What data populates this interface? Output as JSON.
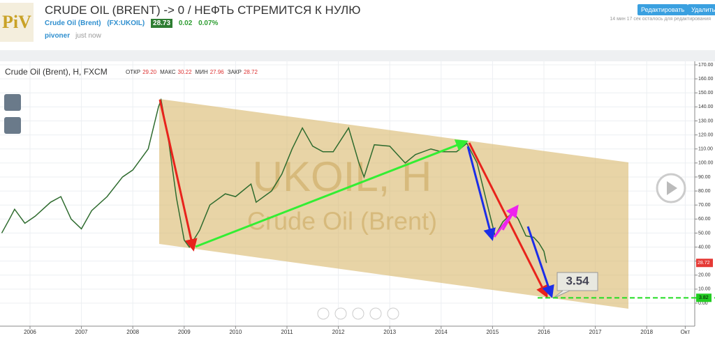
{
  "header": {
    "logo": "PiV",
    "title": "CRUDE OIL (BRENT) -> 0 / НЕФТЬ СТРЕМИТСЯ К НУЛЮ",
    "symbol_name": "Crude Oil (Brent)",
    "symbol_code": "(FX:UKOIL)",
    "price": "28.73",
    "change": "0.02",
    "change_pct": "0.07%",
    "author": "pivoner",
    "time": "just now",
    "edit_button": "Редактировать",
    "delete_button": "Удалить",
    "edit_notice": "14 мин 17 сек осталось для редактирования"
  },
  "chart_data": {
    "type": "line",
    "legend_title": "Crude Oil (Brent), H, FXCM",
    "ohlc": [
      {
        "label": "ОТКР",
        "value": "29.20"
      },
      {
        "label": "МАКС",
        "value": "30.22"
      },
      {
        "label": "МИН",
        "value": "27.96"
      },
      {
        "label": "ЗАКР",
        "value": "28.72"
      }
    ],
    "watermark": [
      "UKOIL, H",
      "Crude Oil (Brent)"
    ],
    "annotation": "3.54",
    "x": [
      2005.45,
      2005.6,
      2005.7,
      2005.9,
      2006.1,
      2006.4,
      2006.6,
      2006.8,
      2007.0,
      2007.2,
      2007.5,
      2007.8,
      2008.0,
      2008.3,
      2008.5,
      2008.55,
      2008.7,
      2008.85,
      2009.0,
      2009.1,
      2009.3,
      2009.5,
      2009.8,
      2010.0,
      2010.3,
      2010.4,
      2010.7,
      2010.9,
      2011.1,
      2011.3,
      2011.5,
      2011.7,
      2011.9,
      2012.2,
      2012.4,
      2012.5,
      2012.7,
      2013.0,
      2013.3,
      2013.5,
      2013.8,
      2014.0,
      2014.3,
      2014.5,
      2014.7,
      2014.9,
      2015.05,
      2015.2,
      2015.4,
      2015.5,
      2015.65,
      2015.8,
      2015.9,
      2016.0,
      2016.05
    ],
    "series": [
      {
        "name": "Crude Oil (Brent)",
        "color": "#2e6b2e",
        "values": [
          50,
          60,
          67,
          57,
          62,
          72,
          76,
          60,
          53,
          66,
          76,
          90,
          95,
          110,
          140,
          145,
          115,
          75,
          45,
          40,
          52,
          70,
          78,
          76,
          85,
          72,
          80,
          92,
          110,
          125,
          112,
          108,
          108,
          125,
          100,
          90,
          113,
          112,
          100,
          106,
          110,
          108,
          108,
          114,
          100,
          70,
          48,
          58,
          65,
          60,
          48,
          47,
          43,
          37,
          28.72
        ]
      }
    ],
    "last_price": 28.72,
    "target_price": 3.82,
    "xlim": [
      2005.416,
      2018.935
    ],
    "xticks": [
      2006,
      2007,
      2008,
      2009,
      2010,
      2011,
      2012,
      2013,
      2014,
      2015,
      2016,
      2017,
      2018,
      {
        "value": 2018.75,
        "label": "Окт"
      }
    ],
    "ylim": [
      -16.4,
      172.5
    ],
    "yticks": [
      {
        "value": 0,
        "label": "0.00"
      },
      {
        "value": 10,
        "label": "10.00"
      },
      {
        "value": 20,
        "label": "20.00"
      },
      {
        "value": 30,
        "label": "30.00"
      },
      {
        "value": 40,
        "label": "40.00"
      },
      {
        "value": 50,
        "label": "50.00"
      },
      {
        "value": 60,
        "label": "60.00"
      },
      {
        "value": 70,
        "label": "70.00"
      },
      {
        "value": 80,
        "label": "80.00"
      },
      {
        "value": 90,
        "label": "90.00"
      },
      {
        "value": 100,
        "label": "100.00"
      },
      {
        "value": 110,
        "label": "110.00"
      },
      {
        "value": 120,
        "label": "120.00"
      },
      {
        "value": 130,
        "label": "130.00"
      },
      {
        "value": 140,
        "label": "140.00"
      },
      {
        "value": 150,
        "label": "150.00"
      },
      {
        "value": 160,
        "label": "160.00"
      },
      {
        "value": 170,
        "label": "170.00"
      }
    ],
    "grid": true
  }
}
